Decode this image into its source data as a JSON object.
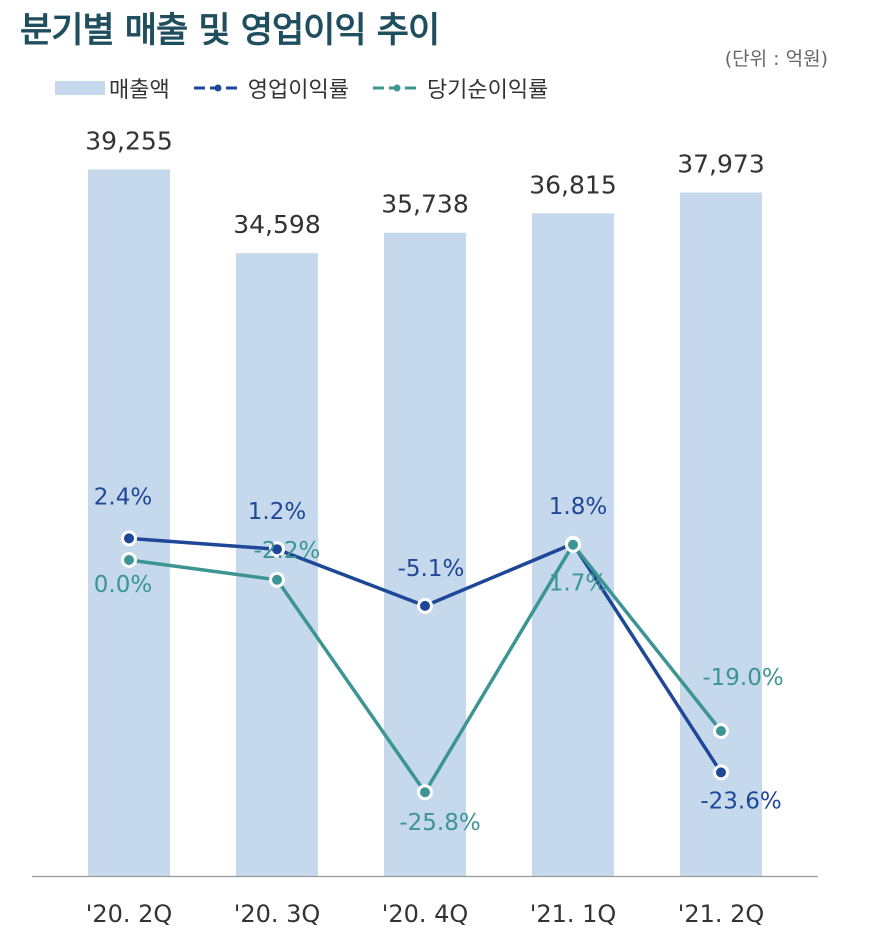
{
  "title": "분기별 매출 및 영업이익 추이",
  "unit_note": "(단위 : 억원)",
  "colors": {
    "bar": "#c5d8ec",
    "operating": "#1f4797",
    "net": "#3d9593",
    "axis": "#999999",
    "title": "#1f4e5f"
  },
  "chart_data": {
    "type": "bar",
    "title": "분기별 매출 및 영업이익 추이",
    "xlabel": "",
    "ylabel": "",
    "ylim": [
      0,
      42000
    ],
    "categories": [
      "'20. 2Q",
      "'20. 3Q",
      "'20. 4Q",
      "'21. 1Q",
      "'21. 2Q"
    ],
    "series": [
      {
        "name": "매출액",
        "type": "bar",
        "values": [
          39255,
          34598,
          35738,
          36815,
          37973
        ],
        "labels": [
          "39,255",
          "34,598",
          "35,738",
          "36,815",
          "37,973"
        ]
      },
      {
        "name": "영업이익률",
        "type": "line",
        "values": [
          2.4,
          1.2,
          -5.1,
          1.8,
          -23.6
        ],
        "labels": [
          "2.4%",
          "1.2%",
          "-5.1%",
          "1.8%",
          "-23.6%"
        ]
      },
      {
        "name": "당기순이익률",
        "type": "line",
        "values": [
          0.0,
          -2.2,
          -25.8,
          1.7,
          -19.0
        ],
        "labels": [
          "0.0%",
          "-2.2%",
          "-25.8%",
          "1.7%",
          "-19.0%"
        ]
      }
    ],
    "line_axis_range": [
      -30,
      10
    ],
    "legend_position": "top-left",
    "grid": false
  }
}
